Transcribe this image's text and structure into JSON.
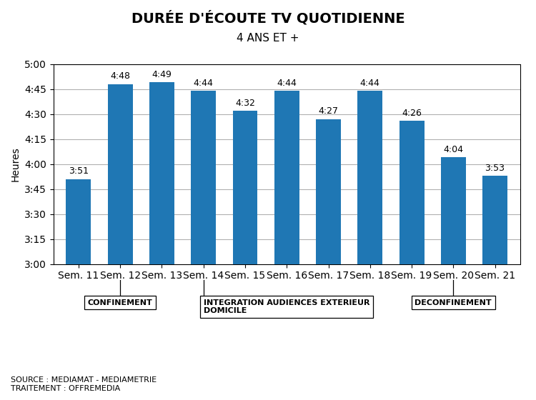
{
  "chart_data": {
    "type": "bar",
    "title": "DURÉE D'ÉCOUTE TV QUOTIDIENNE",
    "subtitle": "4 ANS ET +",
    "ylabel": "Heures",
    "categories": [
      "Sem. 11",
      "Sem. 12",
      "Sem. 13",
      "Sem. 14",
      "Sem. 15",
      "Sem. 16",
      "Sem. 17",
      "Sem. 18",
      "Sem. 19",
      "Sem. 20",
      "Sem. 21"
    ],
    "values": [
      231,
      288,
      289,
      284,
      272,
      284,
      267,
      284,
      266,
      244,
      233
    ],
    "value_labels": [
      "3:51",
      "4:48",
      "4:49",
      "4:44",
      "4:32",
      "4:44",
      "4:27",
      "4:44",
      "4:26",
      "4:04",
      "3:53"
    ],
    "data_labels": true,
    "ylim": [
      180,
      300
    ],
    "yticks": [
      {
        "value": 180,
        "label": "3:00"
      },
      {
        "value": 195,
        "label": "3:15"
      },
      {
        "value": 210,
        "label": "3:30"
      },
      {
        "value": 225,
        "label": "3:45"
      },
      {
        "value": 240,
        "label": "4:00"
      },
      {
        "value": 255,
        "label": "4:15"
      },
      {
        "value": 270,
        "label": "4:30"
      },
      {
        "value": 285,
        "label": "4:45"
      },
      {
        "value": 300,
        "label": "5:00"
      }
    ],
    "grid": true,
    "annotations": [
      {
        "text": "CONFINEMENT",
        "x": "Sem. 12"
      },
      {
        "text": "INTEGRATION AUDIENCES EXTERIEUR\nDOMICILE",
        "x": "Sem. 14"
      },
      {
        "text": "DECONFINEMENT",
        "x": "Sem. 20"
      }
    ],
    "source": "SOURCE : MEDIAMAT - MEDIAMETRIE\nTRAITEMENT : OFFREMEDIA"
  }
}
